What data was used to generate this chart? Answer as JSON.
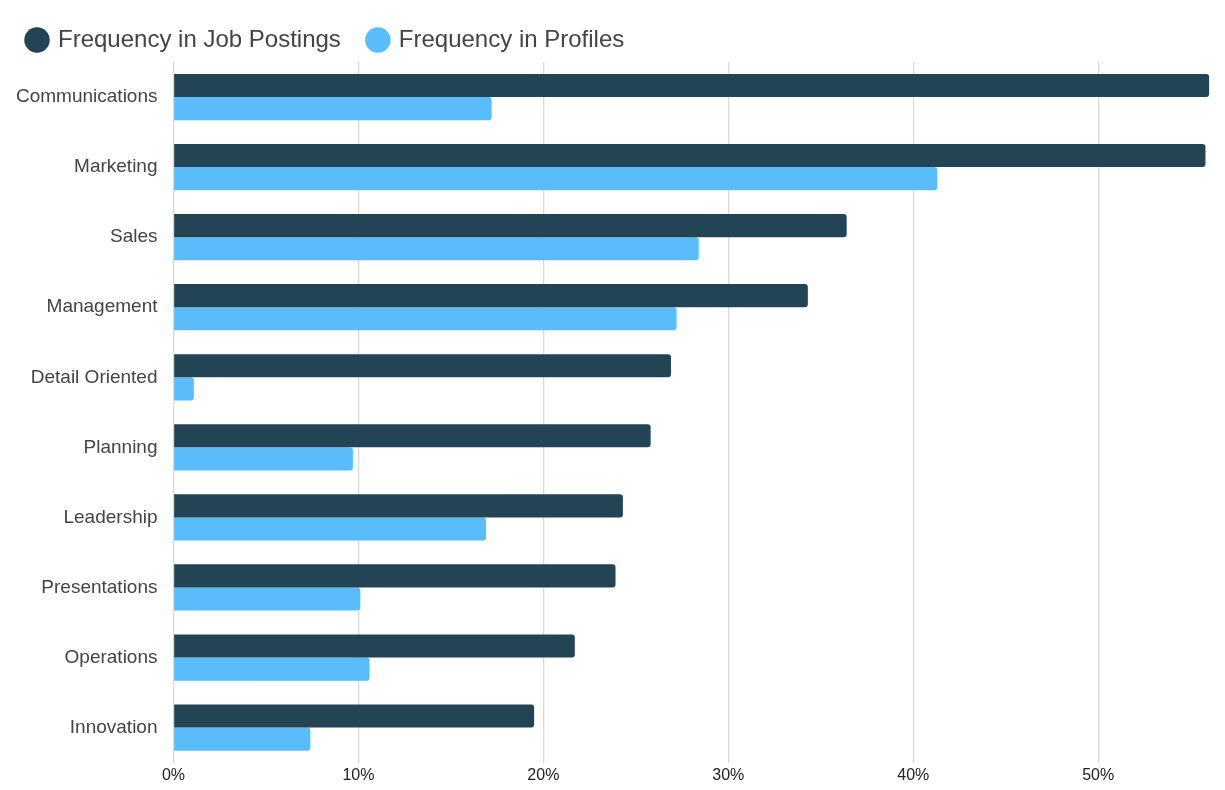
{
  "chart_data": {
    "type": "bar",
    "orientation": "horizontal",
    "categories": [
      "Communications",
      "Marketing",
      "Sales",
      "Management",
      "Detail Oriented",
      "Planning",
      "Leadership",
      "Presentations",
      "Operations",
      "Innovation"
    ],
    "series": [
      {
        "name": "Frequency in Job Postings",
        "color": "#224455",
        "values": [
          56.0,
          55.8,
          36.4,
          34.3,
          26.9,
          25.8,
          24.3,
          23.9,
          21.7,
          19.5
        ]
      },
      {
        "name": "Frequency in Profiles",
        "color": "#5bbcfc",
        "values": [
          17.2,
          41.3,
          28.4,
          27.2,
          1.1,
          9.7,
          16.9,
          10.1,
          10.6,
          7.4
        ]
      }
    ],
    "xlim": [
      0,
      56.1
    ],
    "xticks": [
      {
        "value": 0,
        "label": "0%"
      },
      {
        "value": 10,
        "label": "10%"
      },
      {
        "value": 20,
        "label": "20%"
      },
      {
        "value": 30,
        "label": "30%"
      },
      {
        "value": 40,
        "label": "40%"
      },
      {
        "value": 50,
        "label": "50%"
      }
    ],
    "grid": "x",
    "legend": "top left"
  }
}
